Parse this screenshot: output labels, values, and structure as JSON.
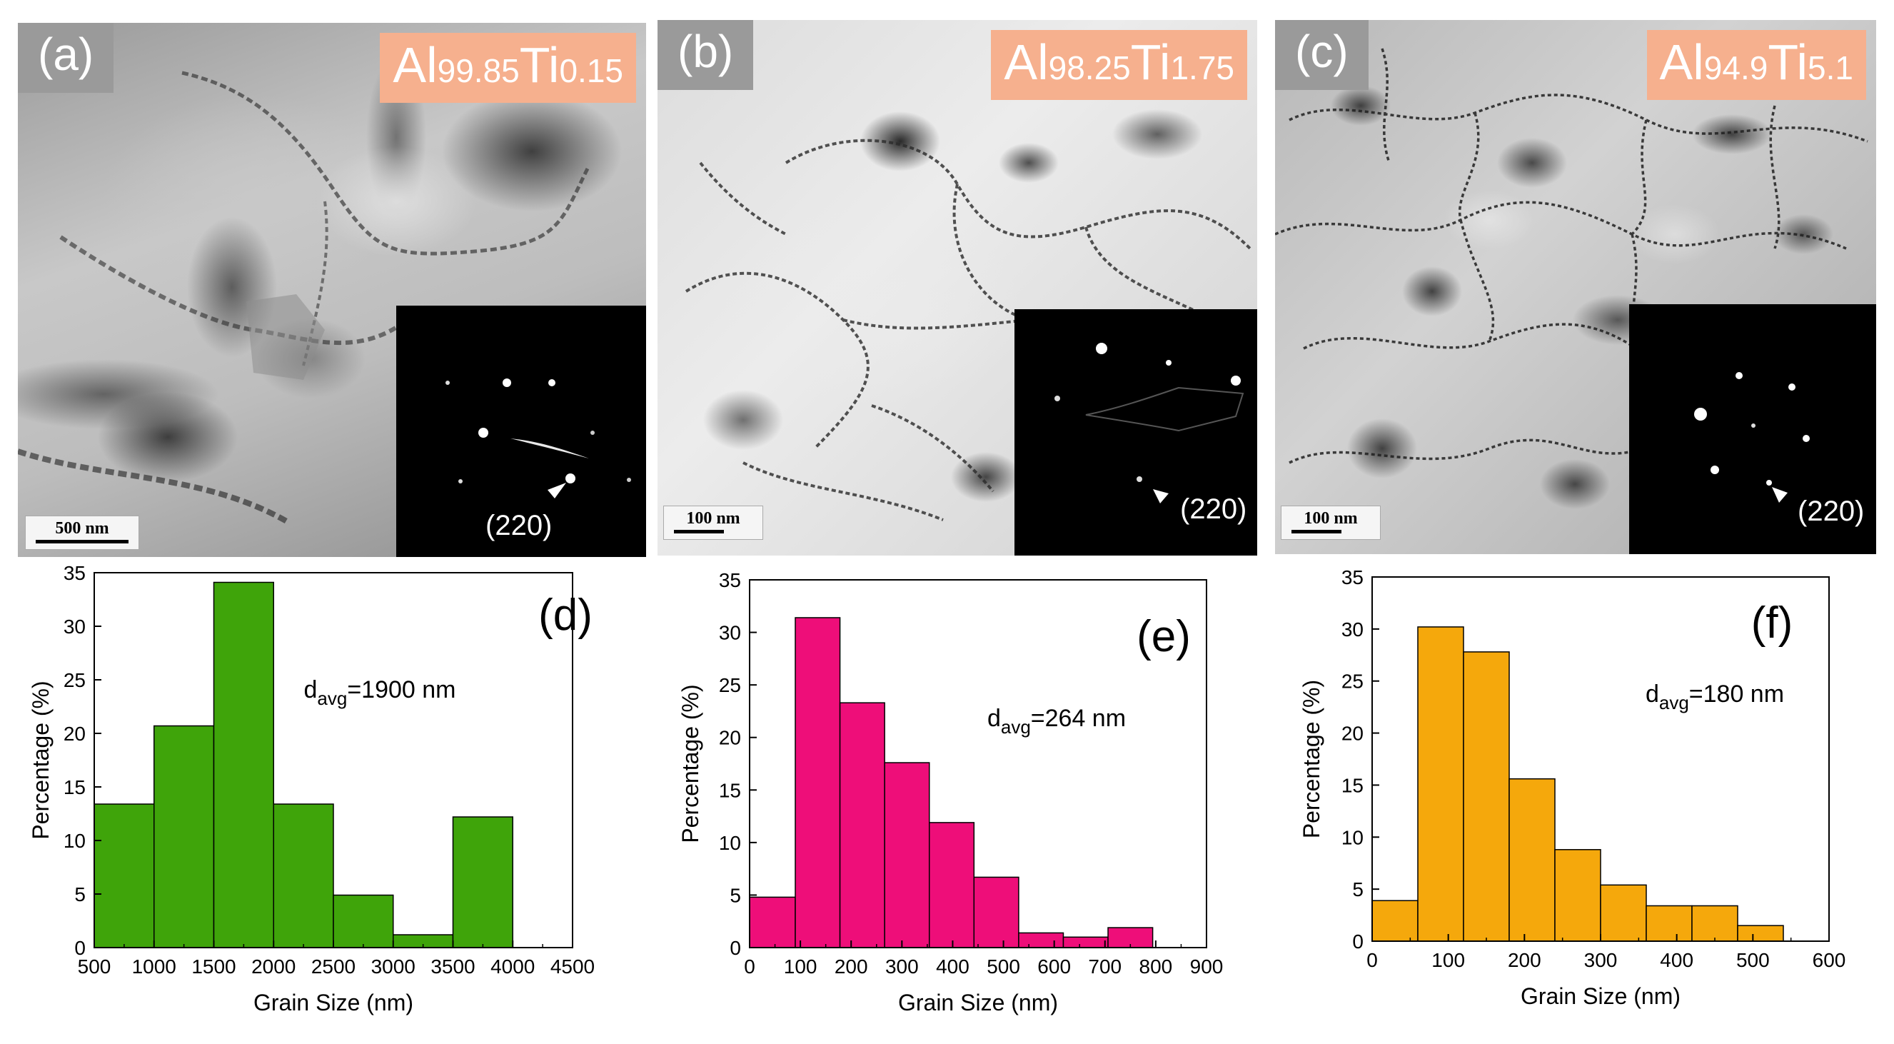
{
  "micrographs": [
    {
      "panel": "(a)",
      "alloy": {
        "el1": "Al",
        "n1": "99.85",
        "el2": "Ti",
        "n2": "0.15"
      },
      "scale_bar": "500 nm",
      "diffraction_label": "(220)"
    },
    {
      "panel": "(b)",
      "alloy": {
        "el1": "Al",
        "n1": "98.25",
        "el2": "Ti",
        "n2": "1.75"
      },
      "scale_bar": "100 nm",
      "diffraction_label": "(220)"
    },
    {
      "panel": "(c)",
      "alloy": {
        "el1": "Al",
        "n1": "94.9",
        "el2": "Ti",
        "n2": "5.1"
      },
      "scale_bar": "100 nm",
      "diffraction_label": "(220)"
    }
  ],
  "colors": {
    "d": "#3fa40a",
    "e": "#ee0e79",
    "f": "#f5a80c"
  },
  "chart_data": [
    {
      "type": "bar",
      "panel_label": "(d)",
      "annotation": {
        "prefix": "d",
        "sub": "avg",
        "suffix": "=1900 nm"
      },
      "xlabel": "Grain Size (nm)",
      "ylabel": "Percentage (%)",
      "xlim": [
        500,
        4500
      ],
      "ylim": [
        0,
        35
      ],
      "xticks": [
        500,
        1000,
        1500,
        2000,
        2500,
        3000,
        3500,
        4000,
        4500
      ],
      "yticks": [
        0,
        5,
        10,
        15,
        20,
        25,
        30,
        35
      ],
      "bin_edges": [
        500,
        1000,
        1500,
        2000,
        2500,
        3000,
        3500,
        4000
      ],
      "values": [
        13.4,
        20.7,
        34.1,
        13.4,
        4.9,
        1.2,
        12.2
      ]
    },
    {
      "type": "bar",
      "panel_label": "(e)",
      "annotation": {
        "prefix": "d",
        "sub": "avg",
        "suffix": "=264 nm"
      },
      "xlabel": "Grain Size (nm)",
      "ylabel": "Percentage (%)",
      "xlim": [
        0,
        900
      ],
      "ylim": [
        0,
        35
      ],
      "xticks": [
        0,
        100,
        200,
        300,
        400,
        500,
        600,
        700,
        800,
        900
      ],
      "yticks": [
        0,
        5,
        10,
        15,
        20,
        25,
        30,
        35
      ],
      "bin_edges": [
        0,
        90,
        178,
        266,
        354,
        442,
        530,
        618,
        706,
        794
      ],
      "values": [
        4.8,
        31.4,
        23.3,
        17.6,
        11.9,
        6.7,
        1.4,
        1.0,
        1.9
      ]
    },
    {
      "type": "bar",
      "panel_label": "(f)",
      "annotation": {
        "prefix": "d",
        "sub": "avg",
        "suffix": "=180 nm"
      },
      "xlabel": "Grain Size (nm)",
      "ylabel": "Percentage (%)",
      "xlim": [
        0,
        600
      ],
      "ylim": [
        0,
        35
      ],
      "xticks": [
        0,
        100,
        200,
        300,
        400,
        500,
        600
      ],
      "yticks": [
        0,
        5,
        10,
        15,
        20,
        25,
        30,
        35
      ],
      "bin_edges": [
        0,
        60,
        120,
        180,
        240,
        300,
        360,
        420,
        480,
        540
      ],
      "values": [
        3.9,
        30.2,
        27.8,
        15.6,
        8.8,
        5.4,
        3.4,
        3.4,
        1.5
      ]
    }
  ]
}
